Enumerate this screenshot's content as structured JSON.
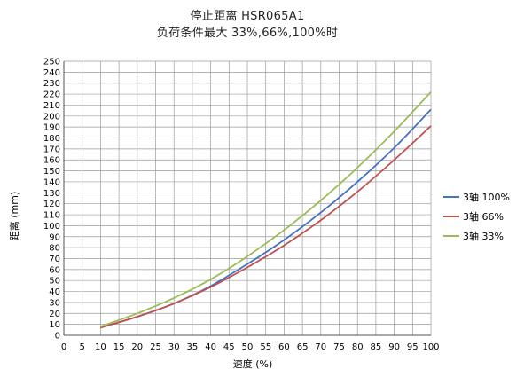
{
  "chart_data": {
    "type": "line",
    "title": "停止距离 HSR065A1",
    "subtitle": "负荷条件最大 33%,66%,100%时",
    "xlabel": "速度 (%)",
    "ylabel": "距离 (mm)",
    "xlim": [
      0,
      100
    ],
    "ylim": [
      0,
      250
    ],
    "x_ticks": [
      0,
      5,
      10,
      15,
      20,
      25,
      30,
      35,
      40,
      45,
      50,
      55,
      60,
      65,
      70,
      75,
      80,
      85,
      90,
      95,
      100
    ],
    "y_ticks": [
      0,
      10,
      20,
      30,
      40,
      50,
      60,
      70,
      80,
      90,
      100,
      110,
      120,
      130,
      140,
      150,
      160,
      170,
      180,
      190,
      200,
      210,
      220,
      230,
      240,
      250
    ],
    "grid": true,
    "legend_position": "right",
    "x": [
      10,
      20,
      30,
      40,
      50,
      60,
      70,
      80,
      90,
      100
    ],
    "series": [
      {
        "name": "3轴  100%",
        "color": "#4472c4",
        "values": [
          7,
          17,
          29,
          45,
          65,
          87,
          112,
          140,
          171,
          206
        ]
      },
      {
        "name": "3轴  66%",
        "color": "#c0504d",
        "values": [
          7,
          17,
          29,
          44,
          62,
          82,
          105,
          131,
          160,
          191
        ]
      },
      {
        "name": "3轴  33%",
        "color": "#9bbb59",
        "values": [
          8,
          20,
          34,
          51,
          72,
          96,
          123,
          153,
          186,
          222
        ]
      }
    ]
  }
}
